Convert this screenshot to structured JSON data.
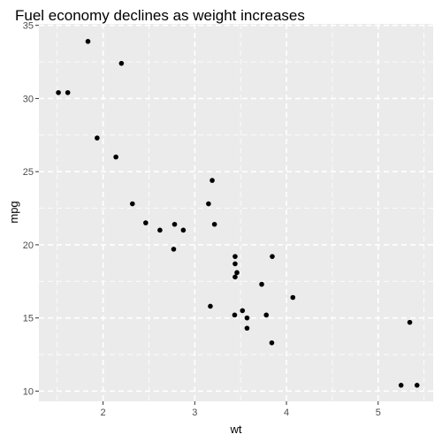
{
  "chart_data": {
    "type": "scatter",
    "title": "Fuel economy declines as weight increases",
    "xlabel": "wt",
    "ylabel": "mpg",
    "xlim": [
      1.3,
      5.6
    ],
    "ylim": [
      9.3,
      35.1
    ],
    "xticks": [
      2,
      3,
      4,
      5
    ],
    "yticks": [
      10,
      15,
      20,
      25,
      30,
      35
    ],
    "grid": true,
    "grid_style": "dashed",
    "panel_background": "#ebebeb",
    "grid_color": "#ffffff",
    "point_color": "#000000",
    "points": [
      {
        "x": 2.62,
        "y": 21.0
      },
      {
        "x": 2.875,
        "y": 21.0
      },
      {
        "x": 2.32,
        "y": 22.8
      },
      {
        "x": 3.215,
        "y": 21.4
      },
      {
        "x": 3.44,
        "y": 18.7
      },
      {
        "x": 3.46,
        "y": 18.1
      },
      {
        "x": 3.57,
        "y": 14.3
      },
      {
        "x": 3.19,
        "y": 24.4
      },
      {
        "x": 3.15,
        "y": 22.8
      },
      {
        "x": 3.44,
        "y": 19.2
      },
      {
        "x": 3.44,
        "y": 17.8
      },
      {
        "x": 4.07,
        "y": 16.4
      },
      {
        "x": 3.73,
        "y": 17.3
      },
      {
        "x": 3.78,
        "y": 15.2
      },
      {
        "x": 5.25,
        "y": 10.4
      },
      {
        "x": 5.424,
        "y": 10.4
      },
      {
        "x": 5.345,
        "y": 14.7
      },
      {
        "x": 2.2,
        "y": 32.4
      },
      {
        "x": 1.615,
        "y": 30.4
      },
      {
        "x": 1.835,
        "y": 33.9
      },
      {
        "x": 2.465,
        "y": 21.5
      },
      {
        "x": 3.52,
        "y": 15.5
      },
      {
        "x": 3.435,
        "y": 15.2
      },
      {
        "x": 3.84,
        "y": 13.3
      },
      {
        "x": 3.845,
        "y": 19.2
      },
      {
        "x": 1.935,
        "y": 27.3
      },
      {
        "x": 2.14,
        "y": 26.0
      },
      {
        "x": 1.513,
        "y": 30.4
      },
      {
        "x": 3.17,
        "y": 15.8
      },
      {
        "x": 2.77,
        "y": 19.7
      },
      {
        "x": 3.57,
        "y": 15.0
      },
      {
        "x": 2.78,
        "y": 21.4
      }
    ]
  }
}
